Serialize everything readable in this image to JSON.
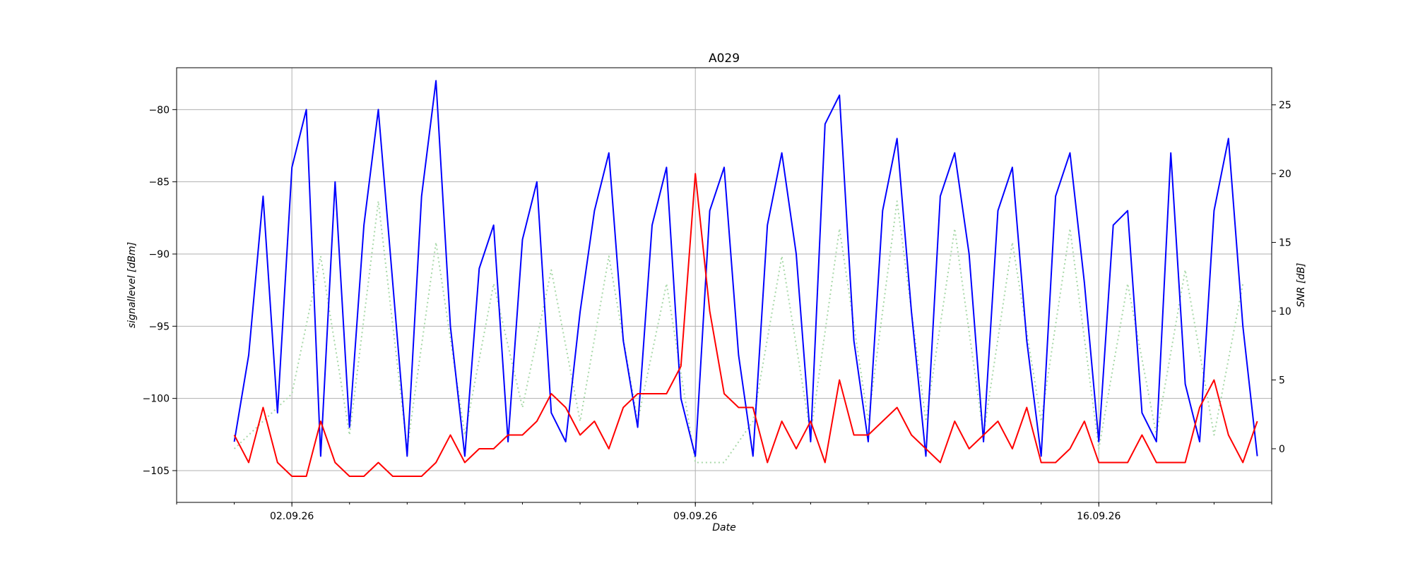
{
  "chart_data": {
    "type": "line",
    "title": "A029",
    "xlabel": "Date",
    "ylabel_left": "signallevel [dBm]",
    "ylabel_right": "SNR [dB]",
    "grid": true,
    "x_range_days": [
      "2026-08-31",
      "2026-09-19"
    ],
    "ylim_left": [
      -107.2,
      -77.1
    ],
    "ylim_right": [
      -3.9,
      27.7
    ],
    "x_ticks": [
      "02.09.26",
      "09.09.26",
      "16.09.26"
    ],
    "y_ticks_left": [
      -80,
      -85,
      -90,
      -95,
      -100,
      -105
    ],
    "y_ticks_right": [
      25,
      20,
      15,
      10,
      5,
      0
    ],
    "colors": {
      "signallevel": "#0000ff",
      "snr": "#ff0000",
      "reference": "#a8d8a8"
    },
    "series": [
      {
        "axis": "left",
        "style": "solid",
        "color": "#0000ff",
        "x": [
          "2026-09-01 00:00",
          "2026-09-01 06:00",
          "2026-09-01 12:00",
          "2026-09-01 18:00",
          "2026-09-02 00:00",
          "2026-09-02 06:00",
          "2026-09-02 12:00",
          "2026-09-02 18:00",
          "2026-09-03 00:00",
          "2026-09-03 06:00",
          "2026-09-03 12:00",
          "2026-09-03 18:00",
          "2026-09-04 00:00",
          "2026-09-04 06:00",
          "2026-09-04 12:00",
          "2026-09-04 18:00",
          "2026-09-05 00:00",
          "2026-09-05 06:00",
          "2026-09-05 12:00",
          "2026-09-05 18:00",
          "2026-09-06 00:00",
          "2026-09-06 06:00",
          "2026-09-06 12:00",
          "2026-09-06 18:00",
          "2026-09-07 00:00",
          "2026-09-07 06:00",
          "2026-09-07 12:00",
          "2026-09-07 18:00",
          "2026-09-08 00:00",
          "2026-09-08 06:00",
          "2026-09-08 12:00",
          "2026-09-08 18:00",
          "2026-09-09 00:00",
          "2026-09-09 06:00",
          "2026-09-09 12:00",
          "2026-09-09 18:00",
          "2026-09-10 00:00",
          "2026-09-10 06:00",
          "2026-09-10 12:00",
          "2026-09-10 18:00",
          "2026-09-11 00:00",
          "2026-09-11 06:00",
          "2026-09-11 12:00",
          "2026-09-11 18:00",
          "2026-09-12 00:00",
          "2026-09-12 06:00",
          "2026-09-12 12:00",
          "2026-09-12 18:00",
          "2026-09-13 00:00",
          "2026-09-13 06:00",
          "2026-09-13 12:00",
          "2026-09-13 18:00",
          "2026-09-14 00:00",
          "2026-09-14 06:00",
          "2026-09-14 12:00",
          "2026-09-14 18:00",
          "2026-09-15 00:00",
          "2026-09-15 06:00",
          "2026-09-15 12:00",
          "2026-09-15 18:00",
          "2026-09-16 00:00",
          "2026-09-16 06:00",
          "2026-09-16 12:00",
          "2026-09-16 18:00",
          "2026-09-17 00:00",
          "2026-09-17 06:00",
          "2026-09-17 12:00",
          "2026-09-17 18:00",
          "2026-09-18 00:00",
          "2026-09-18 06:00",
          "2026-09-18 12:00",
          "2026-09-18 18:00"
        ],
        "values": [
          -103,
          -97,
          -86,
          -101,
          -84,
          -80,
          -104,
          -85,
          -102,
          -88,
          -80,
          -92,
          -104,
          -86,
          -78,
          -95,
          -104,
          -91,
          -88,
          -103,
          -89,
          -85,
          -101,
          -103,
          -94,
          -87,
          -83,
          -96,
          -102,
          -88,
          -84,
          -100,
          -104,
          -87,
          -84,
          -97,
          -104,
          -88,
          -83,
          -90,
          -103,
          -81,
          -79,
          -96,
          -103,
          -87,
          -82,
          -94,
          -104,
          -86,
          -83,
          -90,
          -103,
          -87,
          -84,
          -96,
          -104,
          -86,
          -83,
          -92,
          -103,
          -88,
          -87,
          -101,
          -103,
          -83,
          -99,
          -103,
          -87,
          -82,
          -95,
          -104
        ]
      },
      {
        "axis": "right",
        "style": "solid",
        "color": "#ff0000",
        "x": [
          "2026-09-01 00:00",
          "2026-09-01 06:00",
          "2026-09-01 12:00",
          "2026-09-01 18:00",
          "2026-09-02 00:00",
          "2026-09-02 06:00",
          "2026-09-02 12:00",
          "2026-09-02 18:00",
          "2026-09-03 00:00",
          "2026-09-03 06:00",
          "2026-09-03 12:00",
          "2026-09-03 18:00",
          "2026-09-04 00:00",
          "2026-09-04 06:00",
          "2026-09-04 12:00",
          "2026-09-04 18:00",
          "2026-09-05 00:00",
          "2026-09-05 06:00",
          "2026-09-05 12:00",
          "2026-09-05 18:00",
          "2026-09-06 00:00",
          "2026-09-06 06:00",
          "2026-09-06 12:00",
          "2026-09-06 18:00",
          "2026-09-07 00:00",
          "2026-09-07 06:00",
          "2026-09-07 12:00",
          "2026-09-07 18:00",
          "2026-09-08 00:00",
          "2026-09-08 06:00",
          "2026-09-08 12:00",
          "2026-09-08 18:00",
          "2026-09-09 00:00",
          "2026-09-09 06:00",
          "2026-09-09 12:00",
          "2026-09-09 18:00",
          "2026-09-10 00:00",
          "2026-09-10 06:00",
          "2026-09-10 12:00",
          "2026-09-10 18:00",
          "2026-09-11 00:00",
          "2026-09-11 06:00",
          "2026-09-11 12:00",
          "2026-09-11 18:00",
          "2026-09-12 00:00",
          "2026-09-12 06:00",
          "2026-09-12 12:00",
          "2026-09-12 18:00",
          "2026-09-13 00:00",
          "2026-09-13 06:00",
          "2026-09-13 12:00",
          "2026-09-13 18:00",
          "2026-09-14 00:00",
          "2026-09-14 06:00",
          "2026-09-14 12:00",
          "2026-09-14 18:00",
          "2026-09-15 00:00",
          "2026-09-15 06:00",
          "2026-09-15 12:00",
          "2026-09-15 18:00",
          "2026-09-16 00:00",
          "2026-09-16 06:00",
          "2026-09-16 12:00",
          "2026-09-16 18:00",
          "2026-09-17 00:00",
          "2026-09-17 06:00",
          "2026-09-17 12:00",
          "2026-09-17 18:00",
          "2026-09-18 00:00",
          "2026-09-18 06:00",
          "2026-09-18 12:00",
          "2026-09-18 18:00"
        ],
        "values": [
          1,
          -1,
          3,
          -1,
          -2,
          -2,
          2,
          -1,
          -2,
          -2,
          -1,
          -2,
          -2,
          -2,
          -1,
          1,
          -1,
          0,
          0,
          1,
          1,
          2,
          4,
          3,
          1,
          2,
          0,
          3,
          4,
          4,
          4,
          6,
          20,
          10,
          4,
          3,
          3,
          -1,
          2,
          0,
          2,
          -1,
          5,
          1,
          1,
          2,
          3,
          1,
          0,
          -1,
          2,
          0,
          1,
          2,
          0,
          3,
          -1,
          -1,
          0,
          2,
          -1,
          -1,
          -1,
          1,
          -1,
          -1,
          -1,
          3,
          5,
          1,
          -1,
          2
        ]
      },
      {
        "axis": "right",
        "style": "dotted",
        "color": "#a8d8a8",
        "x": [
          "2026-09-01 00:00",
          "2026-09-01 12:00",
          "2026-09-02 00:00",
          "2026-09-02 12:00",
          "2026-09-03 00:00",
          "2026-09-03 12:00",
          "2026-09-04 00:00",
          "2026-09-04 12:00",
          "2026-09-05 00:00",
          "2026-09-05 12:00",
          "2026-09-06 00:00",
          "2026-09-06 12:00",
          "2026-09-07 00:00",
          "2026-09-07 12:00",
          "2026-09-08 00:00",
          "2026-09-08 12:00",
          "2026-09-09 00:00",
          "2026-09-09 12:00",
          "2026-09-10 00:00",
          "2026-09-10 12:00",
          "2026-09-11 00:00",
          "2026-09-11 12:00",
          "2026-09-12 00:00",
          "2026-09-12 12:00",
          "2026-09-13 00:00",
          "2026-09-13 12:00",
          "2026-09-14 00:00",
          "2026-09-14 12:00",
          "2026-09-15 00:00",
          "2026-09-15 12:00",
          "2026-09-16 00:00",
          "2026-09-16 12:00",
          "2026-09-17 00:00",
          "2026-09-17 12:00",
          "2026-09-18 00:00",
          "2026-09-18 12:00"
        ],
        "values": [
          0,
          2,
          4,
          14,
          1,
          18,
          0,
          15,
          1,
          12,
          3,
          13,
          2,
          14,
          2,
          12,
          -1,
          -1,
          2,
          14,
          1,
          16,
          2,
          18,
          2,
          16,
          1,
          15,
          2,
          16,
          0,
          12,
          1,
          13,
          1,
          12
        ]
      }
    ]
  }
}
